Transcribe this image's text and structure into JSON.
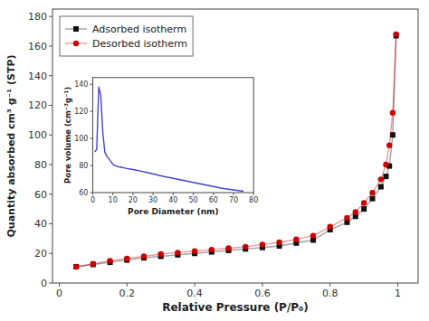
{
  "chart_data": [
    {
      "type": "line",
      "xlabel": "Relative Pressure (P/P₀)",
      "ylabel": "Quantity absorbed cm³ g⁻¹ (STP)",
      "x": [
        0.05,
        0.1,
        0.15,
        0.2,
        0.25,
        0.3,
        0.35,
        0.4,
        0.45,
        0.5,
        0.55,
        0.6,
        0.65,
        0.7,
        0.75,
        0.8,
        0.85,
        0.875,
        0.9,
        0.925,
        0.95,
        0.965,
        0.975,
        0.985,
        0.995
      ],
      "series": [
        {
          "name": "Adsorbed isotherm",
          "color": "#111111",
          "marker": "square",
          "values": [
            11,
            12.5,
            14,
            15.5,
            17,
            18,
            19,
            20,
            21,
            22,
            23,
            24,
            25,
            27,
            29,
            36,
            41,
            45,
            50,
            57,
            65,
            72,
            79,
            100,
            167
          ]
        },
        {
          "name": "Desorbed isotherm",
          "color": "#cc0000",
          "marker": "circle",
          "values": [
            11,
            13,
            15,
            16.5,
            18,
            19.5,
            20.5,
            21.5,
            22.5,
            23.5,
            24.5,
            26,
            27.5,
            29.5,
            32,
            38,
            44,
            48,
            54,
            61,
            70,
            80,
            93,
            115,
            168
          ]
        }
      ],
      "xlim": [
        -0.02,
        1.06
      ],
      "ylim": [
        0,
        185
      ],
      "xticks": [
        0.0,
        0.2,
        0.4,
        0.6,
        0.8,
        1.0
      ],
      "yticks": [
        0,
        20,
        40,
        60,
        80,
        100,
        120,
        140,
        160,
        180
      ],
      "legend": "upper left",
      "grid": false
    },
    {
      "type": "line",
      "xlabel": "Pore Diameter (nm)",
      "ylabel": "Pore volume (cm⁻³g⁻¹)",
      "x": [
        1,
        2,
        3,
        4,
        5,
        6,
        7,
        8,
        9,
        10,
        11,
        12,
        13,
        15,
        18,
        22,
        28,
        35,
        45,
        55,
        65,
        75
      ],
      "values": [
        90,
        92,
        138,
        132,
        105,
        90,
        87,
        85,
        83,
        81,
        80,
        79.5,
        79,
        78.5,
        77.5,
        76.5,
        74.5,
        72,
        69,
        66,
        63,
        61
      ],
      "color": "#4444cc",
      "xlim": [
        0,
        80
      ],
      "ylim": [
        60,
        145
      ],
      "xticks": [
        0,
        10,
        20,
        30,
        40,
        50,
        60,
        70,
        80
      ],
      "yticks": [
        60,
        80,
        100,
        120,
        140
      ],
      "grid": false
    }
  ]
}
